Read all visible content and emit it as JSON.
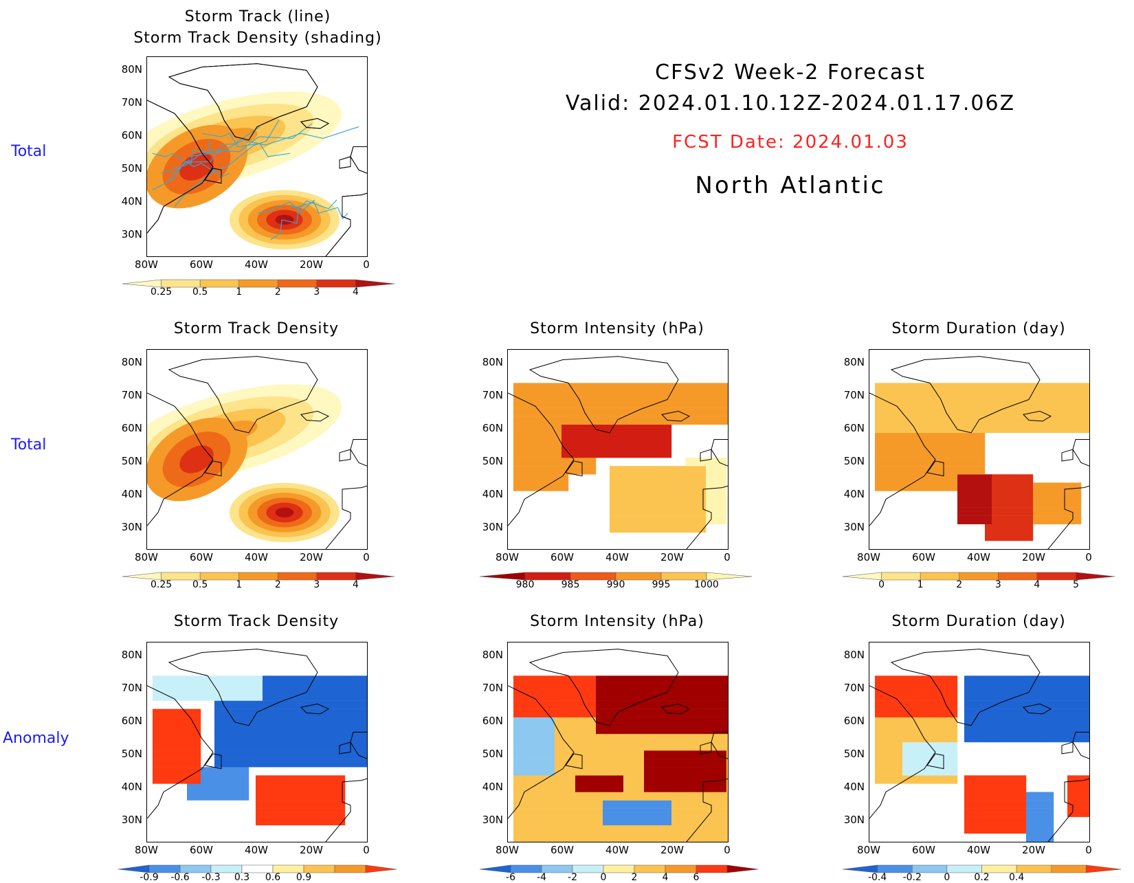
{
  "header": {
    "title": "CFSv2 Week-2 Forecast",
    "valid": "Valid: 2024.01.10.12Z-2024.01.17.06Z",
    "fcst_date": "FCST Date: 2024.01.03",
    "region": "North Atlantic",
    "fcst_color": "#ff2020"
  },
  "row_labels": {
    "row1": "Total",
    "row2": "Total",
    "row3": "Anomaly"
  },
  "axes": {
    "lat_ticks": [
      "80N",
      "70N",
      "60N",
      "50N",
      "40N",
      "30N"
    ],
    "lon_ticks": [
      "80W",
      "60W",
      "40W",
      "20W",
      "0"
    ]
  },
  "panels": {
    "p1": {
      "title_line1": "Storm Track (line)",
      "title_line2": "Storm Track Density (shading)"
    },
    "p2": {
      "title": "Storm Track Density"
    },
    "p3": {
      "title": "Storm Intensity (hPa)"
    },
    "p4": {
      "title": "Storm Duration (day)"
    },
    "p5": {
      "title": "Storm Track Density"
    },
    "p6": {
      "title": "Storm Intensity (hPa)"
    },
    "p7": {
      "title": "Storm Duration (day)"
    }
  },
  "colorbars": {
    "density": {
      "labels": [
        "0.25",
        "0.5",
        "1",
        "2",
        "3",
        "4"
      ],
      "colors": [
        "#fff8c0",
        "#fde38a",
        "#fbc350",
        "#f59a28",
        "#ee6a18",
        "#dd3014",
        "#b41010"
      ]
    },
    "intensity": {
      "labels": [
        "980",
        "985",
        "990",
        "995",
        "1000"
      ],
      "colors": [
        "#a00000",
        "#d21e12",
        "#ee5a1a",
        "#f59a28",
        "#fbc350",
        "#fff5b0"
      ]
    },
    "duration": {
      "labels": [
        "0",
        "1",
        "2",
        "3",
        "4",
        "5"
      ],
      "colors": [
        "#fff8c0",
        "#fde38a",
        "#fbc350",
        "#f59a28",
        "#ee6a18",
        "#dd3014",
        "#b41010"
      ]
    },
    "density_anom": {
      "labels": [
        "-0.9",
        "-0.6",
        "-0.3",
        "0.3",
        "0.6",
        "0.9"
      ],
      "colors": [
        "#1e64d2",
        "#4a90e6",
        "#8cc8f0",
        "#c8f0f8",
        "#ffffff",
        "#fff0a0",
        "#fbc350",
        "#f59a28",
        "#ff3a10"
      ]
    },
    "intensity_anom": {
      "labels": [
        "-6",
        "-4",
        "-2",
        "0",
        "2",
        "4",
        "6"
      ],
      "colors": [
        "#1e64d2",
        "#4a90e6",
        "#8cc8f0",
        "#c8f0f8",
        "#fff0a0",
        "#fbc350",
        "#f59a28",
        "#ff3a10",
        "#a00000"
      ]
    },
    "duration_anom": {
      "labels": [
        "-0.4",
        "-0.2",
        "0",
        "0.2",
        "0.4"
      ],
      "colors": [
        "#1e64d2",
        "#4a90e6",
        "#8cc8f0",
        "#c8f0f8",
        "#fff0a0",
        "#fbc350",
        "#f59a28",
        "#ff3a10"
      ]
    }
  }
}
